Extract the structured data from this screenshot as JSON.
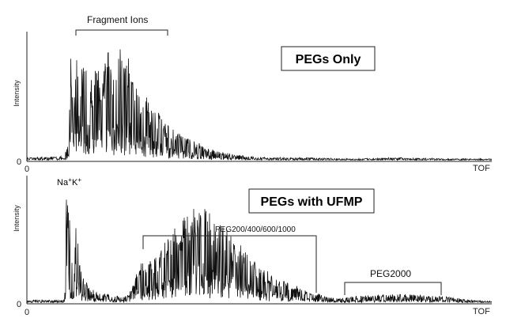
{
  "chart_data": [
    {
      "type": "line",
      "title": "PEGs Only",
      "xlabel": "TOF",
      "ylabel": "Intensity",
      "x_tick_labels": [
        "0"
      ],
      "y_tick_labels": [
        "0"
      ],
      "grid": false,
      "legend": "none",
      "annotations": [
        {
          "text": "Fragment Ions"
        }
      ],
      "series": [
        {
          "color": "#111111",
          "x": [
            0,
            7,
            8,
            9,
            9.5,
            10,
            11,
            12,
            13,
            14,
            15,
            16,
            17,
            18,
            19,
            20,
            21,
            22,
            23,
            24,
            25,
            26,
            27,
            28,
            29,
            30,
            32,
            34,
            36,
            38,
            40,
            42,
            44,
            46,
            50,
            60,
            70,
            80,
            90,
            100
          ],
          "y": [
            0.02,
            0.03,
            0.05,
            0.12,
            0.9,
            0.5,
            0.95,
            0.7,
            0.85,
            0.6,
            0.75,
            0.65,
            0.8,
            0.9,
            0.7,
            0.95,
            0.75,
            0.85,
            0.6,
            0.7,
            0.45,
            0.5,
            0.38,
            0.4,
            0.32,
            0.28,
            0.22,
            0.18,
            0.15,
            0.12,
            0.08,
            0.06,
            0.05,
            0.04,
            0.02,
            0.02,
            0.01,
            0.02,
            0.01,
            0.01
          ]
        }
      ]
    },
    {
      "type": "line",
      "title": "PEGs with UFMP",
      "xlabel": "TOF",
      "ylabel": "Intensity",
      "x_tick_labels": [
        "0"
      ],
      "y_tick_labels": [
        "0"
      ],
      "grid": false,
      "legend": "none",
      "annotations": [
        {
          "text": "Na",
          "sup": "+"
        },
        {
          "text": "K",
          "sup": "+"
        },
        {
          "text": "PEG200/400/600/1000"
        },
        {
          "text": "PEG2000"
        }
      ],
      "series": [
        {
          "color": "#111111",
          "x": [
            0,
            7,
            8,
            8.5,
            9,
            10,
            10.5,
            11,
            12,
            14,
            16,
            18,
            20,
            22,
            24,
            26,
            28,
            30,
            32,
            34,
            36,
            38,
            40,
            42,
            44,
            46,
            48,
            50,
            52,
            54,
            56,
            58,
            60,
            62,
            64,
            66,
            68,
            70,
            75,
            80,
            85,
            90,
            95,
            100
          ],
          "y": [
            0.02,
            0.02,
            0.03,
            0.85,
            0.9,
            0.06,
            0.85,
            0.5,
            0.2,
            0.1,
            0.08,
            0.06,
            0.05,
            0.06,
            0.3,
            0.35,
            0.4,
            0.5,
            0.6,
            0.7,
            0.75,
            0.8,
            0.7,
            0.6,
            0.55,
            0.45,
            0.35,
            0.3,
            0.25,
            0.2,
            0.16,
            0.13,
            0.1,
            0.08,
            0.05,
            0.04,
            0.04,
            0.05,
            0.06,
            0.07,
            0.06,
            0.05,
            0.02,
            0.01
          ]
        }
      ]
    }
  ]
}
